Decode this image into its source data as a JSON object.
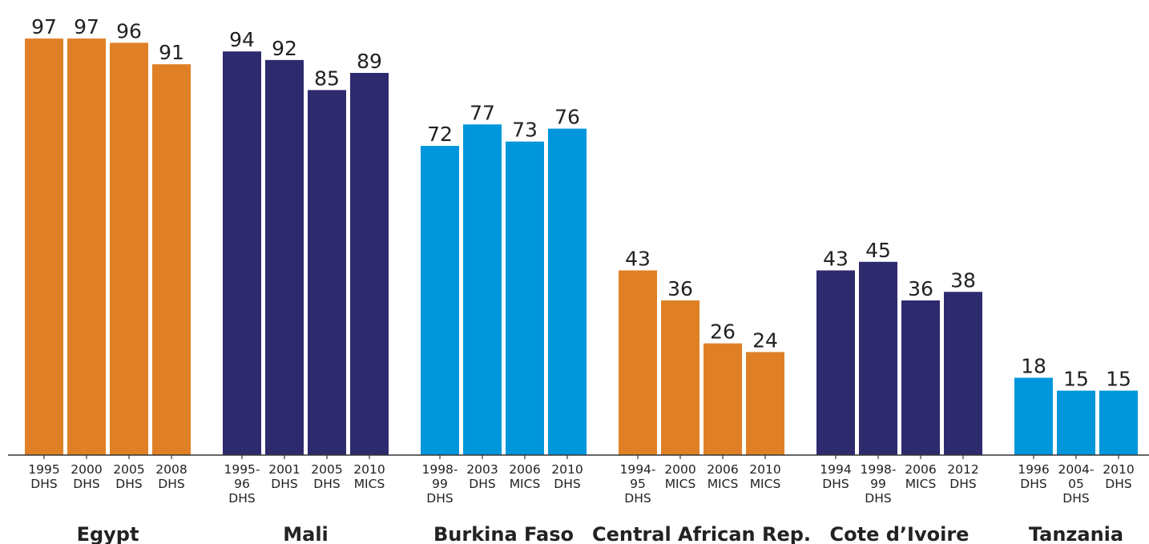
{
  "chart_data": {
    "type": "bar",
    "title": "",
    "xlabel": "",
    "ylabel": "",
    "ylim": [
      0,
      100
    ],
    "colors": {
      "orange": "#E08026",
      "navy": "#2E2A6E",
      "blue": "#0096DB"
    },
    "groups": [
      {
        "name": "Egypt",
        "color": "orange",
        "bars": [
          {
            "label": [
              "1995",
              "DHS"
            ],
            "value": 97
          },
          {
            "label": [
              "2000",
              "DHS"
            ],
            "value": 97
          },
          {
            "label": [
              "2005",
              "DHS"
            ],
            "value": 96
          },
          {
            "label": [
              "2008",
              "DHS"
            ],
            "value": 91
          }
        ]
      },
      {
        "name": "Mali",
        "color": "navy",
        "bars": [
          {
            "label": [
              "1995-",
              "96",
              "DHS"
            ],
            "value": 94
          },
          {
            "label": [
              "2001",
              "DHS"
            ],
            "value": 92
          },
          {
            "label": [
              "2005",
              "DHS"
            ],
            "value": 85
          },
          {
            "label": [
              "2010",
              "MICS"
            ],
            "value": 89
          }
        ]
      },
      {
        "name": "Burkina Faso",
        "color": "blue",
        "bars": [
          {
            "label": [
              "1998-",
              "99",
              "DHS"
            ],
            "value": 72
          },
          {
            "label": [
              "2003",
              "DHS"
            ],
            "value": 77
          },
          {
            "label": [
              "2006",
              "MICS"
            ],
            "value": 73
          },
          {
            "label": [
              "2010",
              "DHS"
            ],
            "value": 76
          }
        ]
      },
      {
        "name": "Central African Rep.",
        "color": "orange",
        "bars": [
          {
            "label": [
              "1994-",
              "95",
              "DHS"
            ],
            "value": 43
          },
          {
            "label": [
              "2000",
              "MICS"
            ],
            "value": 36
          },
          {
            "label": [
              "2006",
              "MICS"
            ],
            "value": 26
          },
          {
            "label": [
              "2010",
              "MICS"
            ],
            "value": 24
          }
        ]
      },
      {
        "name": "Cote d’Ivoire",
        "color": "navy",
        "bars": [
          {
            "label": [
              "1994",
              "DHS"
            ],
            "value": 43
          },
          {
            "label": [
              "1998-",
              "99",
              "DHS"
            ],
            "value": 45
          },
          {
            "label": [
              "2006",
              "MICS"
            ],
            "value": 36
          },
          {
            "label": [
              "2012",
              "DHS"
            ],
            "value": 38
          }
        ]
      },
      {
        "name": "Tanzania",
        "color": "blue",
        "bars": [
          {
            "label": [
              "1996",
              "DHS"
            ],
            "value": 18
          },
          {
            "label": [
              "2004-",
              "05",
              "DHS"
            ],
            "value": 15
          },
          {
            "label": [
              "2010",
              "DHS"
            ],
            "value": 15
          }
        ]
      }
    ]
  }
}
